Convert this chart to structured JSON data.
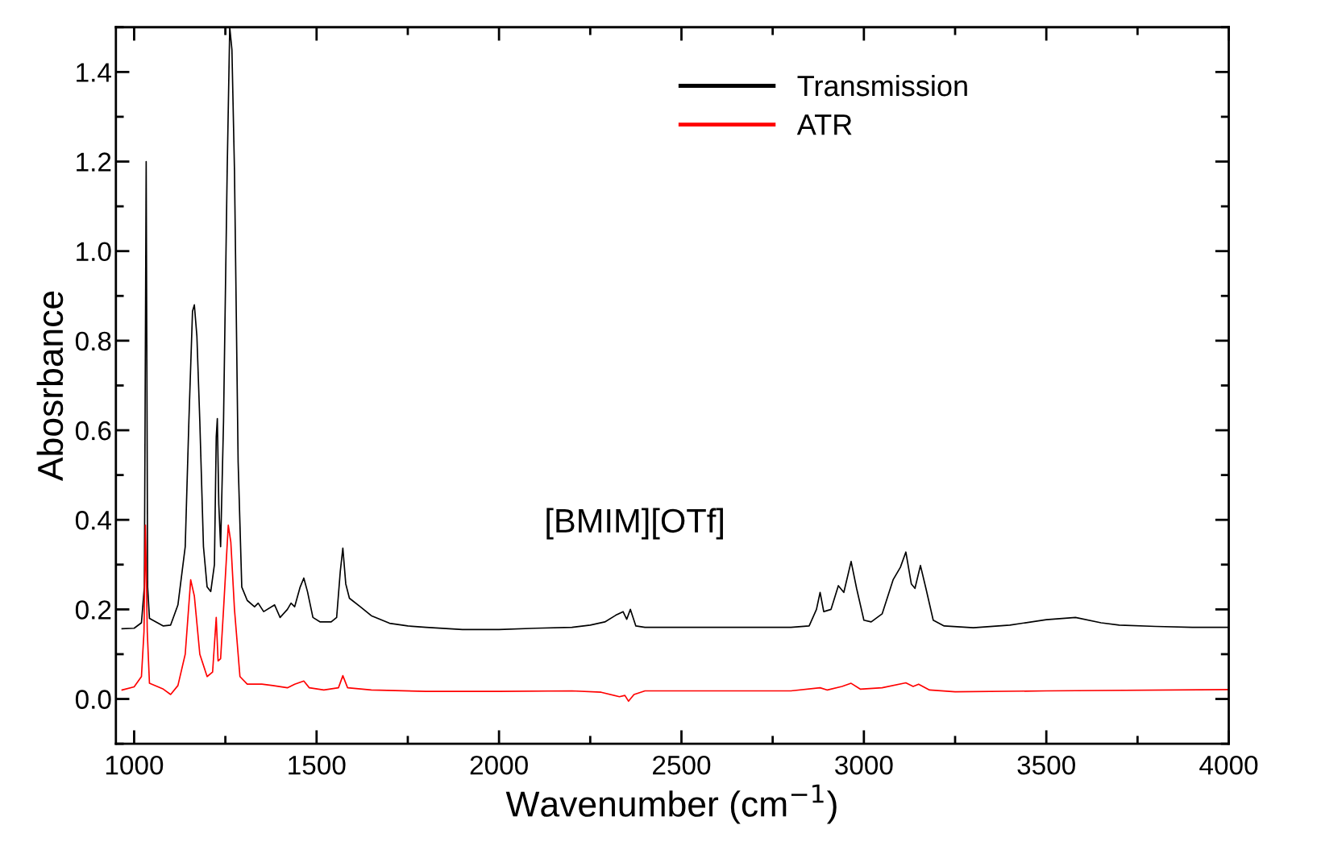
{
  "chart_data": {
    "type": "line",
    "xlabel": "Wavenumber (cm$^{−1}$)",
    "ylabel": "Abosrbance",
    "xlim": [
      950,
      4000
    ],
    "xticks": [
      1000,
      1500,
      2000,
      2500,
      3000,
      3500,
      4000
    ],
    "ylim": [
      -0.1,
      1.5
    ],
    "yticks": [
      {
        "value": 0,
        "label": "0.0"
      },
      0.2,
      0.4,
      0.6,
      0.8,
      {
        "value": 1,
        "label": "1.0"
      },
      1.2,
      1.4
    ],
    "grid": false,
    "legend": "top right",
    "marker": "none",
    "line_style": "solid",
    "annotations": [
      "[BMIM][OTf]"
    ],
    "series": [
      {
        "name": "Transmission",
        "color": "#000000",
        "x": [
          967,
          1000,
          1020,
          1028,
          1033,
          1037,
          1042,
          1080,
          1100,
          1120,
          1140,
          1150,
          1160,
          1165,
          1172,
          1180,
          1190,
          1200,
          1210,
          1220,
          1225,
          1228,
          1232,
          1237,
          1245,
          1255,
          1262,
          1268,
          1275,
          1285,
          1295,
          1310,
          1330,
          1340,
          1355,
          1385,
          1400,
          1420,
          1430,
          1440,
          1455,
          1465,
          1475,
          1490,
          1510,
          1540,
          1555,
          1565,
          1572,
          1580,
          1590,
          1620,
          1650,
          1700,
          1750,
          1800,
          1900,
          2000,
          2100,
          2200,
          2250,
          2290,
          2320,
          2340,
          2350,
          2360,
          2375,
          2400,
          2500,
          2600,
          2700,
          2800,
          2850,
          2870,
          2880,
          2890,
          2910,
          2930,
          2945,
          2965,
          2980,
          3000,
          3020,
          3050,
          3080,
          3100,
          3115,
          3130,
          3140,
          3155,
          3170,
          3190,
          3220,
          3300,
          3400,
          3500,
          3580,
          3650,
          3700,
          3800,
          3900,
          4000
        ],
        "values": [
          0.157,
          0.158,
          0.17,
          0.25,
          1.2,
          0.25,
          0.18,
          0.163,
          0.165,
          0.21,
          0.34,
          0.62,
          0.866,
          0.88,
          0.81,
          0.62,
          0.34,
          0.25,
          0.24,
          0.3,
          0.585,
          0.626,
          0.435,
          0.34,
          0.62,
          1.18,
          1.5,
          1.45,
          1.18,
          0.53,
          0.25,
          0.22,
          0.206,
          0.214,
          0.195,
          0.21,
          0.182,
          0.2,
          0.214,
          0.206,
          0.25,
          0.27,
          0.24,
          0.182,
          0.172,
          0.172,
          0.182,
          0.285,
          0.337,
          0.257,
          0.225,
          0.206,
          0.186,
          0.169,
          0.163,
          0.16,
          0.155,
          0.155,
          0.158,
          0.16,
          0.165,
          0.172,
          0.187,
          0.195,
          0.178,
          0.2,
          0.163,
          0.16,
          0.16,
          0.16,
          0.16,
          0.16,
          0.163,
          0.2,
          0.238,
          0.195,
          0.2,
          0.253,
          0.238,
          0.307,
          0.247,
          0.176,
          0.172,
          0.19,
          0.266,
          0.294,
          0.328,
          0.257,
          0.247,
          0.298,
          0.247,
          0.176,
          0.163,
          0.159,
          0.165,
          0.177,
          0.182,
          0.17,
          0.165,
          0.162,
          0.16,
          0.16
        ]
      },
      {
        "name": "ATR",
        "color": "#ff0000",
        "x": [
          967,
          1000,
          1020,
          1027,
          1031,
          1036,
          1042,
          1080,
          1100,
          1120,
          1140,
          1155,
          1165,
          1180,
          1200,
          1215,
          1225,
          1230,
          1237,
          1245,
          1258,
          1265,
          1275,
          1290,
          1310,
          1350,
          1380,
          1420,
          1440,
          1465,
          1480,
          1520,
          1560,
          1572,
          1585,
          1650,
          1800,
          2000,
          2200,
          2280,
          2330,
          2345,
          2355,
          2370,
          2400,
          2800,
          2880,
          2900,
          2940,
          2965,
          2990,
          3050,
          3115,
          3135,
          3150,
          3180,
          3250,
          3500,
          4000
        ],
        "values": [
          0.02,
          0.027,
          0.05,
          0.15,
          0.388,
          0.15,
          0.035,
          0.022,
          0.01,
          0.03,
          0.1,
          0.266,
          0.23,
          0.1,
          0.05,
          0.06,
          0.182,
          0.085,
          0.09,
          0.2,
          0.388,
          0.35,
          0.2,
          0.05,
          0.033,
          0.033,
          0.03,
          0.025,
          0.033,
          0.04,
          0.025,
          0.02,
          0.025,
          0.052,
          0.025,
          0.02,
          0.017,
          0.017,
          0.018,
          0.015,
          0.005,
          0.008,
          -0.005,
          0.01,
          0.018,
          0.018,
          0.025,
          0.02,
          0.028,
          0.035,
          0.022,
          0.025,
          0.036,
          0.028,
          0.033,
          0.02,
          0.016,
          0.018,
          0.021
        ]
      }
    ]
  }
}
